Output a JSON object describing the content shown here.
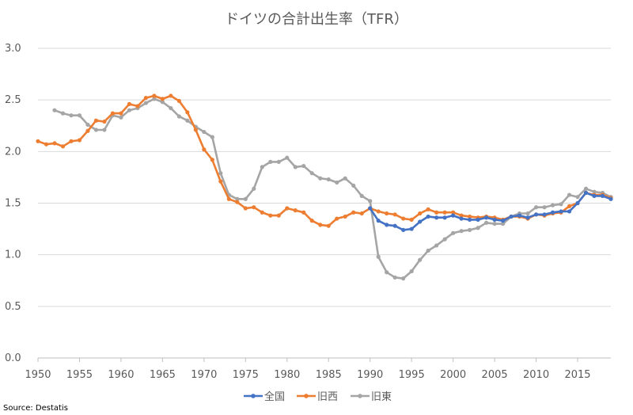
{
  "chart_data": {
    "type": "line",
    "title": "ドイツの合計出生率（TFR）",
    "source": "Source: Destatis",
    "xlim": [
      1950,
      2019
    ],
    "ylim": [
      0,
      3.0
    ],
    "yticks": [
      "0.0",
      "0.5",
      "1.0",
      "1.5",
      "2.0",
      "2.5",
      "3.0"
    ],
    "ytick_values": [
      0,
      0.5,
      1.0,
      1.5,
      2.0,
      2.5,
      3.0
    ],
    "xticks": [
      "1950",
      "1955",
      "1960",
      "1965",
      "1970",
      "1975",
      "1980",
      "1985",
      "1990",
      "1995",
      "2000",
      "2005",
      "2010",
      "2015"
    ],
    "xtick_values": [
      1950,
      1955,
      1960,
      1965,
      1970,
      1975,
      1980,
      1985,
      1990,
      1995,
      2000,
      2005,
      2010,
      2015
    ],
    "grid": true,
    "legend_position": "bottom",
    "series": [
      {
        "name": "全国",
        "color": "#4472c4",
        "x": [
          1990,
          1991,
          1992,
          1993,
          1994,
          1995,
          1996,
          1997,
          1998,
          1999,
          2000,
          2001,
          2002,
          2003,
          2004,
          2005,
          2006,
          2007,
          2008,
          2009,
          2010,
          2011,
          2012,
          2013,
          2014,
          2015,
          2016,
          2017,
          2018,
          2019
        ],
        "y": [
          1.45,
          1.33,
          1.29,
          1.28,
          1.24,
          1.25,
          1.32,
          1.37,
          1.36,
          1.36,
          1.38,
          1.35,
          1.34,
          1.34,
          1.36,
          1.34,
          1.33,
          1.37,
          1.38,
          1.36,
          1.39,
          1.39,
          1.41,
          1.42,
          1.42,
          1.5,
          1.6,
          1.57,
          1.57,
          1.54
        ]
      },
      {
        "name": "旧西",
        "color": "#ed7d31",
        "x": [
          1950,
          1951,
          1952,
          1953,
          1954,
          1955,
          1956,
          1957,
          1958,
          1959,
          1960,
          1961,
          1962,
          1963,
          1964,
          1965,
          1966,
          1967,
          1968,
          1969,
          1970,
          1971,
          1972,
          1973,
          1974,
          1975,
          1976,
          1977,
          1978,
          1979,
          1980,
          1981,
          1982,
          1983,
          1984,
          1985,
          1986,
          1987,
          1988,
          1989,
          1990,
          1991,
          1992,
          1993,
          1994,
          1995,
          1996,
          1997,
          1998,
          1999,
          2000,
          2001,
          2002,
          2003,
          2004,
          2005,
          2006,
          2007,
          2008,
          2009,
          2010,
          2011,
          2012,
          2013,
          2014,
          2015,
          2016,
          2017,
          2018,
          2019
        ],
        "y": [
          2.1,
          2.07,
          2.08,
          2.05,
          2.1,
          2.11,
          2.2,
          2.3,
          2.29,
          2.37,
          2.37,
          2.46,
          2.44,
          2.52,
          2.54,
          2.51,
          2.54,
          2.49,
          2.38,
          2.21,
          2.02,
          1.92,
          1.71,
          1.54,
          1.51,
          1.45,
          1.46,
          1.41,
          1.38,
          1.38,
          1.45,
          1.43,
          1.41,
          1.33,
          1.29,
          1.28,
          1.35,
          1.37,
          1.41,
          1.4,
          1.45,
          1.42,
          1.4,
          1.39,
          1.35,
          1.34,
          1.4,
          1.44,
          1.41,
          1.41,
          1.41,
          1.38,
          1.37,
          1.36,
          1.37,
          1.36,
          1.34,
          1.37,
          1.37,
          1.35,
          1.39,
          1.38,
          1.4,
          1.41,
          1.47,
          1.5,
          1.6,
          1.58,
          1.58,
          1.55
        ]
      },
      {
        "name": "旧東",
        "color": "#a5a5a5",
        "x": [
          1952,
          1953,
          1954,
          1955,
          1956,
          1957,
          1958,
          1959,
          1960,
          1961,
          1962,
          1963,
          1964,
          1965,
          1966,
          1967,
          1968,
          1969,
          1970,
          1971,
          1972,
          1973,
          1974,
          1975,
          1976,
          1977,
          1978,
          1979,
          1980,
          1981,
          1982,
          1983,
          1984,
          1985,
          1986,
          1987,
          1988,
          1989,
          1990,
          1991,
          1992,
          1993,
          1994,
          1995,
          1996,
          1997,
          1998,
          1999,
          2000,
          2001,
          2002,
          2003,
          2004,
          2005,
          2006,
          2007,
          2008,
          2009,
          2010,
          2011,
          2012,
          2013,
          2014,
          2015,
          2016,
          2017,
          2018,
          2019
        ],
        "y": [
          2.4,
          2.37,
          2.35,
          2.35,
          2.26,
          2.21,
          2.21,
          2.35,
          2.33,
          2.4,
          2.42,
          2.47,
          2.51,
          2.48,
          2.42,
          2.34,
          2.3,
          2.24,
          2.19,
          2.14,
          1.79,
          1.58,
          1.54,
          1.54,
          1.64,
          1.85,
          1.9,
          1.9,
          1.94,
          1.85,
          1.86,
          1.79,
          1.74,
          1.73,
          1.7,
          1.74,
          1.67,
          1.57,
          1.52,
          0.98,
          0.83,
          0.78,
          0.77,
          0.84,
          0.95,
          1.04,
          1.09,
          1.15,
          1.21,
          1.23,
          1.24,
          1.26,
          1.31,
          1.3,
          1.3,
          1.37,
          1.4,
          1.4,
          1.46,
          1.46,
          1.48,
          1.49,
          1.58,
          1.56,
          1.64,
          1.61,
          1.6,
          1.56
        ]
      }
    ]
  }
}
